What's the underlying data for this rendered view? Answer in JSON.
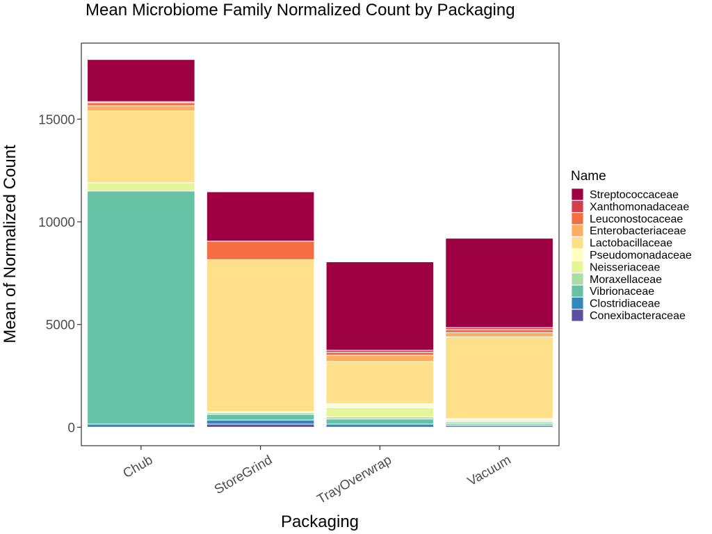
{
  "chart_data": {
    "type": "bar",
    "stacked": true,
    "title": "Mean Microbiome Family Normalized Count by Packaging",
    "xlabel": "Packaging",
    "ylabel": "Mean of Normalized Count",
    "categories": [
      "Chub",
      "StoreGrind",
      "TrayOverwrap",
      "Vacuum"
    ],
    "ylim": [
      -900,
      18700
    ],
    "yticks": [
      0,
      5000,
      10000,
      15000
    ],
    "y_tick_labels": [
      "0",
      "5000",
      "10000",
      "15000"
    ],
    "grid": false,
    "legend": {
      "title": "Name",
      "position": "right"
    },
    "series": [
      {
        "name": "Conexibacteraceae",
        "color": "#5E4FA2",
        "values": [
          0,
          150,
          0,
          0
        ]
      },
      {
        "name": "Clostridiaceae",
        "color": "#3288BD",
        "values": [
          150,
          200,
          150,
          80
        ]
      },
      {
        "name": "Vibrionaceae",
        "color": "#66C2A5",
        "values": [
          11350,
          280,
          250,
          80
        ]
      },
      {
        "name": "Moraxellaceae",
        "color": "#ABDDA4",
        "values": [
          0,
          80,
          100,
          100
        ]
      },
      {
        "name": "Neisseriaceae",
        "color": "#E6F598",
        "values": [
          400,
          0,
          450,
          80
        ]
      },
      {
        "name": "Pseudomonadaceae",
        "color": "#FFFFBF",
        "values": [
          0,
          50,
          200,
          80
        ]
      },
      {
        "name": "Lactobacillaceae",
        "color": "#FEE08B",
        "values": [
          3500,
          7400,
          2050,
          3980
        ]
      },
      {
        "name": "Enterobacteriaceae",
        "color": "#FDAE61",
        "values": [
          250,
          0,
          300,
          200
        ]
      },
      {
        "name": "Leuconostocaceae",
        "color": "#F46D43",
        "values": [
          150,
          900,
          150,
          150
        ]
      },
      {
        "name": "Xanthomonadaceae",
        "color": "#D53E4F",
        "values": [
          50,
          0,
          100,
          100
        ]
      },
      {
        "name": "Streptococcaceae",
        "color": "#9E0142",
        "values": [
          2050,
          2400,
          4300,
          4350
        ]
      }
    ]
  }
}
